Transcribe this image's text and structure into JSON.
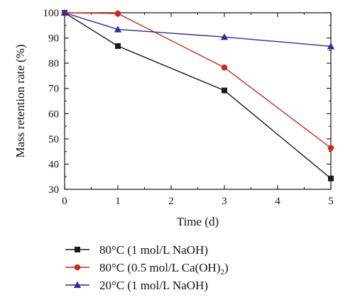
{
  "chart_data": {
    "type": "line",
    "x": [
      0,
      1,
      3,
      5
    ],
    "xlabel": "Time (d)",
    "ylabel": "Mass retention rate (%)",
    "xlim": [
      0,
      5
    ],
    "ylim": [
      30,
      100
    ],
    "xticks": [
      "0",
      "1",
      "2",
      "3",
      "4",
      "5"
    ],
    "yticks": [
      "30",
      "40",
      "50",
      "60",
      "70",
      "80",
      "90",
      "100"
    ],
    "grid": false,
    "legend_position": "bottom",
    "series": [
      {
        "name": "80°C (1 mol/L NaOH)",
        "name_main": "80°C (1 mol/L NaOH)",
        "name_sub": "",
        "name_tail": "",
        "values": [
          100,
          86.8,
          69.2,
          34.3
        ],
        "color": "#1a1a1a",
        "marker": "square"
      },
      {
        "name": "80°C (0.5 mol/L Ca(OH)2)",
        "name_main": "80°C (0.5 mol/L Ca(OH)",
        "name_sub": "2",
        "name_tail": ")",
        "values": [
          100,
          99.7,
          78.3,
          46.4
        ],
        "color": "#cc2a1a",
        "marker": "circle"
      },
      {
        "name": "20°C (1 mol/L NaOH)",
        "name_main": "20°C (1 mol/L NaOH)",
        "name_sub": "",
        "name_tail": "",
        "values": [
          100,
          93.4,
          90.4,
          86.7
        ],
        "color": "#2c2c9a",
        "marker": "triangle"
      }
    ]
  }
}
